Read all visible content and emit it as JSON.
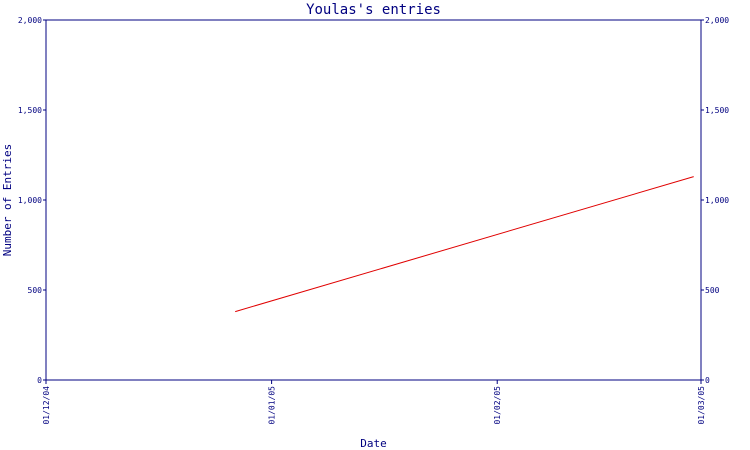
{
  "chart_data": {
    "type": "line",
    "title": "Youlas's entries",
    "xlabel": "Date",
    "ylabel": "Number of Entries",
    "x_ticks": [
      "01/12/04",
      "01/01/05",
      "01/02/05",
      "01/03/05"
    ],
    "ylim": [
      0,
      2000
    ],
    "y_ticks": [
      0,
      500,
      1000,
      1500,
      2000
    ],
    "y_tick_labels": [
      "0",
      "500",
      "1,000",
      "1,500",
      "2,000"
    ],
    "right_axis": true,
    "grid": false,
    "legend": "none",
    "series": [
      {
        "color": "#e00000",
        "points": [
          {
            "x": "2004-12-27",
            "y": 380
          },
          {
            "x": "2005-02-28",
            "y": 1130
          }
        ]
      }
    ]
  },
  "colors": {
    "axis": "#000080",
    "text": "#000080",
    "background": "#ffffff"
  }
}
